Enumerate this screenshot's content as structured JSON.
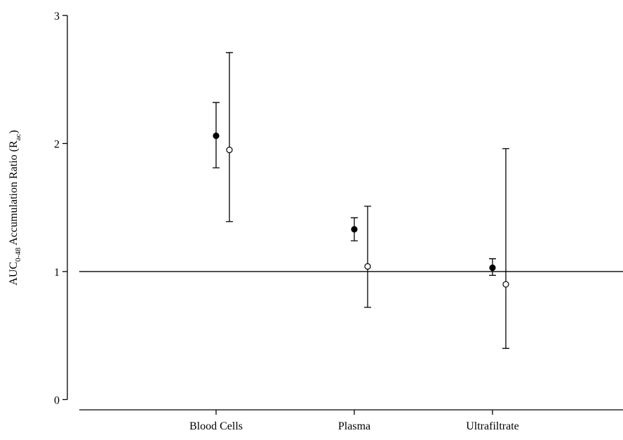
{
  "chart_data": {
    "type": "errorbar",
    "ylabel": [
      "AUC",
      "0-48",
      " Accumulation Ratio (R",
      "ac",
      ")"
    ],
    "categories": [
      "Blood Cells",
      "Plasma",
      "Ultrafiltrate"
    ],
    "series": [
      {
        "marker": "filled",
        "color": "#000000",
        "values": [
          2.06,
          1.33,
          1.03
        ],
        "lower": [
          1.81,
          1.24,
          0.97
        ],
        "upper": [
          2.32,
          1.42,
          1.1
        ]
      },
      {
        "marker": "open",
        "color": "#000000",
        "values": [
          1.95,
          1.04,
          0.9
        ],
        "lower": [
          1.39,
          0.72,
          0.4
        ],
        "upper": [
          2.71,
          1.51,
          1.96
        ]
      }
    ],
    "ylim": [
      -0.08,
      3
    ],
    "yticks": [
      0,
      1,
      2,
      3
    ],
    "reference_line": 1
  }
}
